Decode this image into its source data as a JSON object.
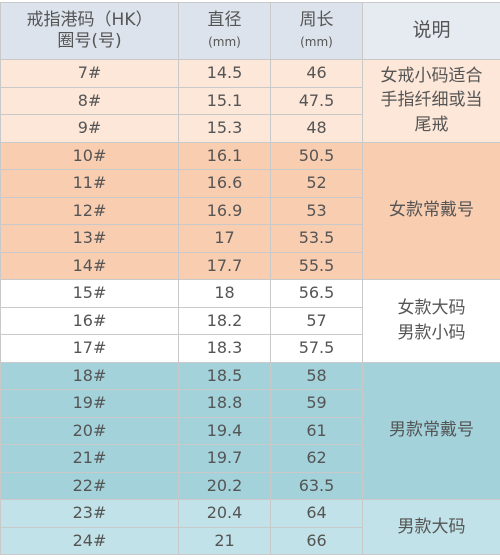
{
  "table": {
    "header": [
      [
        "戒指港码（HK）",
        "圈号(号)"
      ],
      [
        "直径",
        "(mm)"
      ],
      [
        "周长",
        "(mm)"
      ],
      [
        "说明"
      ]
    ],
    "groups": [
      {
        "rows": [
          [
            "7#",
            "14.5",
            "46"
          ],
          [
            "8#",
            "15.1",
            "47.5"
          ],
          [
            "9#",
            "15.3",
            "48"
          ]
        ],
        "note": [
          "女戒小码适合",
          "手指纤细或当",
          "尾戒"
        ]
      },
      {
        "rows": [
          [
            "10#",
            "16.1",
            "50.5"
          ],
          [
            "11#",
            "16.6",
            "52"
          ],
          [
            "12#",
            "16.9",
            "53"
          ],
          [
            "13#",
            "17",
            "53.5"
          ],
          [
            "14#",
            "17.7",
            "55.5"
          ]
        ],
        "note": [
          "女款常戴号"
        ]
      },
      {
        "rows": [
          [
            "15#",
            "18",
            "56.5"
          ],
          [
            "16#",
            "18.2",
            "57"
          ],
          [
            "17#",
            "18.3",
            "57.5"
          ]
        ],
        "note": [
          "女款大码",
          "男款小码"
        ]
      },
      {
        "rows": [
          [
            "18#",
            "18.5",
            "58"
          ],
          [
            "19#",
            "18.8",
            "59"
          ],
          [
            "20#",
            "19.4",
            "61"
          ],
          [
            "21#",
            "19.7",
            "62"
          ],
          [
            "22#",
            "20.2",
            "63.5"
          ]
        ],
        "note": [
          "男款常戴号"
        ]
      },
      {
        "rows": [
          [
            "23#",
            "20.4",
            "64"
          ],
          [
            "24#",
            "21",
            "66"
          ]
        ],
        "note": [
          "男款大码"
        ]
      }
    ]
  }
}
